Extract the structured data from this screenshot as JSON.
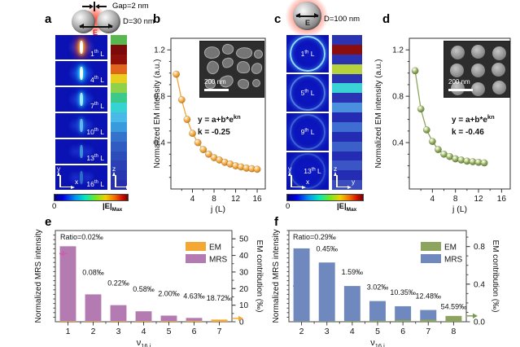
{
  "panel_a": {
    "label": "a",
    "gap_label": "Gap=2 nm",
    "diameter_label": "D=30 nm",
    "field_label": "E",
    "ordinal_suffix": "th",
    "layer_unit": "L",
    "layers": [
      "1",
      "4",
      "7",
      "10",
      "13",
      "16"
    ],
    "left_axis": {
      "v": "y",
      "h": "x"
    },
    "right_axis": {
      "v": "z",
      "h": "x"
    },
    "colorbar_min": "0",
    "colorbar_max_pre": "|E|",
    "colorbar_max_sub": "Max",
    "map_base_color": "#0a12b4",
    "stripe_colors": [
      "#58b84f",
      "#7c0a0a",
      "#8e1008",
      "#e0661c",
      "#e8cf1f",
      "#8fd24a",
      "#3ec98c",
      "#37d2d2",
      "#49b9e8",
      "#3a9ade",
      "#3472cc",
      "#305cc2",
      "#2c4cba",
      "#2a40b4",
      "#2836b0",
      "#262eae"
    ]
  },
  "panel_c": {
    "label": "c",
    "diameter_label": "D=100 nm",
    "field_label": "E",
    "ordinal_suffix": "th",
    "layer_unit": "L",
    "layers": [
      "1",
      "5",
      "9",
      "13"
    ],
    "left_axis": {
      "v": "y",
      "h": "x"
    },
    "right_axis": {
      "v": "z",
      "h": "y"
    },
    "colorbar_min": "0",
    "colorbar_max_pre": "|E|",
    "colorbar_max_sub": "Max",
    "map_base_color": "#0a12b4",
    "stripe_colors": [
      "#2a33b2",
      "#8c0d0d",
      "#2a33b2",
      "#b6d23c",
      "#2a33b2",
      "#3bd2d6",
      "#2a33b2",
      "#4b8fdf",
      "#232cb2",
      "#3f6ed2",
      "#232cb2",
      "#3c60ca",
      "#232cb2",
      "#3b55c4",
      "#232cb2",
      "#3a4cbe"
    ]
  },
  "chart_data": [
    {
      "id": "b",
      "panel_label": "b",
      "type": "scatter",
      "x": [
        1,
        2,
        3,
        4,
        5,
        6,
        7,
        8,
        9,
        10,
        11,
        12,
        13,
        14,
        15,
        16
      ],
      "y": [
        0.99,
        0.77,
        0.6,
        0.48,
        0.4,
        0.34,
        0.3,
        0.27,
        0.25,
        0.23,
        0.215,
        0.2,
        0.19,
        0.18,
        0.175,
        0.17
      ],
      "marker_color": "#F2A43A",
      "xlabel": "j (L)",
      "ylabel": "Normalized EM intensity (a.u.)",
      "xticks": [
        4,
        8,
        12,
        16
      ],
      "yticks": [
        0.4,
        0.8,
        1.2
      ],
      "xlim": [
        0,
        17.5
      ],
      "ylim": [
        0,
        1.3
      ],
      "grid": false,
      "fit_eq_base": "y = a+b*e",
      "fit_eq_sup": "kn",
      "fit_k": "k = -0.25",
      "inset_scale": "200 nm",
      "inset_type": "irregular"
    },
    {
      "id": "d",
      "panel_label": "d",
      "type": "scatter",
      "x": [
        1,
        2,
        3,
        4,
        5,
        6,
        7,
        8,
        9,
        10,
        11,
        12,
        13
      ],
      "y": [
        1.02,
        0.69,
        0.51,
        0.41,
        0.34,
        0.3,
        0.28,
        0.26,
        0.25,
        0.24,
        0.235,
        0.23,
        0.225
      ],
      "marker_color": "#8DA65A",
      "xlabel": "j (L)",
      "ylabel": "Normalized EM intensity (a.u.)",
      "xticks": [
        4,
        8,
        12,
        16
      ],
      "yticks": [
        0.4,
        0.8,
        1.2
      ],
      "xlim": [
        0,
        17.5
      ],
      "ylim": [
        0,
        1.3
      ],
      "grid": false,
      "fit_eq_base": "y = a+b*e",
      "fit_eq_sup": "kn",
      "fit_k": "k = -0.46",
      "inset_scale": "200 nm",
      "inset_type": "dots"
    },
    {
      "id": "e",
      "panel_label": "e",
      "type": "bar",
      "categories": [
        "1",
        "2",
        "3",
        "4",
        "5",
        "6",
        "7"
      ],
      "series": [
        {
          "name": "MRS",
          "color": "#B47AB2",
          "values": [
            45.5,
            16.5,
            10.0,
            6.3,
            3.7,
            2.3,
            1.0
          ]
        },
        {
          "name": "EM",
          "color": "#F3A833",
          "values": [
            0.4,
            0.4,
            0.4,
            0.4,
            0.4,
            0.6,
            1.3
          ]
        }
      ],
      "bar_labels": [
        "Ratio=0.02‰",
        "0.08‰",
        "0.22‰",
        "0.58‰",
        "2.00‰",
        "4.63‰",
        "18.72‰"
      ],
      "ylabel_left": "Normalized MRS intensity",
      "ylabel_right": "EM contribution (‰)",
      "right_ticks": [
        0,
        10,
        20,
        30,
        40,
        50
      ],
      "right_tick_labels": [
        "0",
        "10",
        "20",
        "30",
        "40",
        "50"
      ],
      "ylim": [
        0,
        55
      ],
      "xlabel_base": "ν",
      "xlabel_sub": "16,i",
      "legend": [
        {
          "name": "EM",
          "color": "#F3A833"
        },
        {
          "name": "MRS",
          "color": "#B47AB2"
        }
      ],
      "legend_position": "top-right",
      "arrows": [
        {
          "side": "left",
          "value": 41,
          "color": "#CE5FB0"
        },
        {
          "side": "right",
          "value": 2,
          "color": "#F3A833"
        }
      ]
    },
    {
      "id": "f",
      "panel_label": "f",
      "type": "bar",
      "categories": [
        "2",
        "3",
        "4",
        "5",
        "6",
        "7",
        "8"
      ],
      "series": [
        {
          "name": "MRS",
          "color": "#6F88BE",
          "values": [
            0.78,
            0.63,
            0.38,
            0.22,
            0.165,
            0.125,
            0.012
          ]
        },
        {
          "name": "EM",
          "color": "#8CA45E",
          "values": [
            0.004,
            0.005,
            0.008,
            0.012,
            0.018,
            0.022,
            0.062
          ]
        }
      ],
      "bar_labels": [
        "Ratio=0.29‰",
        "0.45‰",
        "1.59‰",
        "3.02‰",
        "10.35‰",
        "12.48‰",
        "54.59‰"
      ],
      "ylabel_left": "Normalized MRS intensity",
      "ylabel_right": "EM contribution (‰)",
      "right_ticks": [
        0,
        0.4,
        0.8
      ],
      "right_tick_labels": [
        "0.0",
        "0.4",
        "0.8"
      ],
      "ylim": [
        0,
        0.97
      ],
      "xlabel_base": "ν",
      "xlabel_sub": "16,i",
      "legend": [
        {
          "name": "EM",
          "color": "#8CA45E"
        },
        {
          "name": "MRS",
          "color": "#6F88BE"
        }
      ],
      "legend_position": "top-right",
      "arrows": [
        {
          "side": "left",
          "value": 0.38,
          "color": "#6F88BE"
        },
        {
          "side": "right",
          "value": 0.062,
          "color": "#7A994E"
        }
      ]
    }
  ]
}
